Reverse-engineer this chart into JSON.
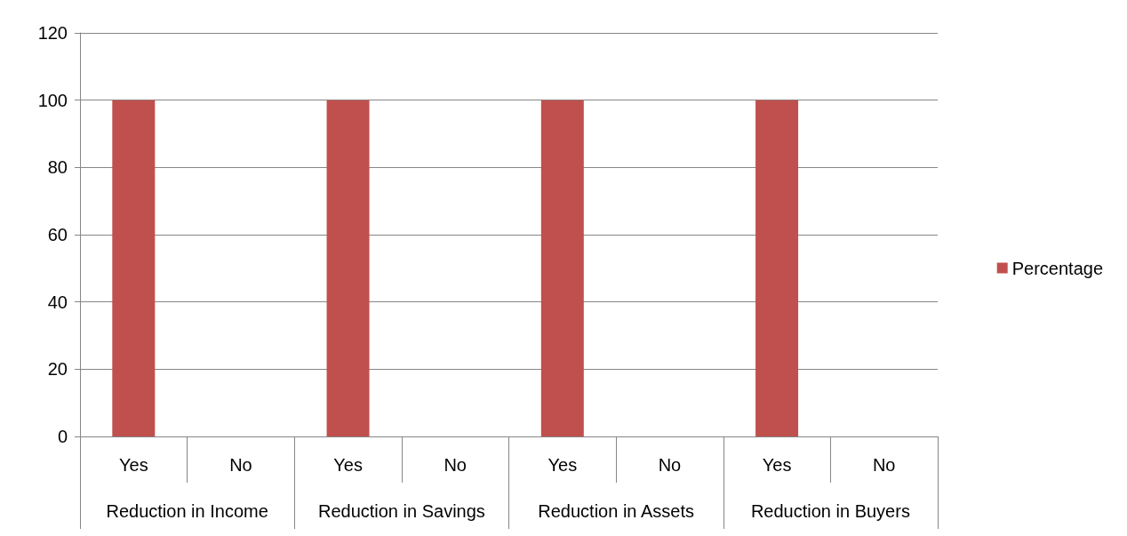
{
  "chart_data": {
    "type": "bar",
    "categories": [
      "Yes",
      "No",
      "Yes",
      "No",
      "Yes",
      "No",
      "Yes",
      "No"
    ],
    "annotations": [
      "Reduction in Income",
      "Reduction in Savings",
      "Reduction in Assets",
      "Reduction in Buyers"
    ],
    "series": [
      {
        "name": "Percentage",
        "color": "#c0504d",
        "values": [
          100,
          0,
          100,
          0,
          100,
          0,
          100,
          0
        ]
      }
    ],
    "ylim": [
      0,
      120
    ],
    "yticks": [
      0,
      20,
      40,
      60,
      80,
      100,
      120
    ],
    "grid": "y",
    "legend": "right"
  }
}
